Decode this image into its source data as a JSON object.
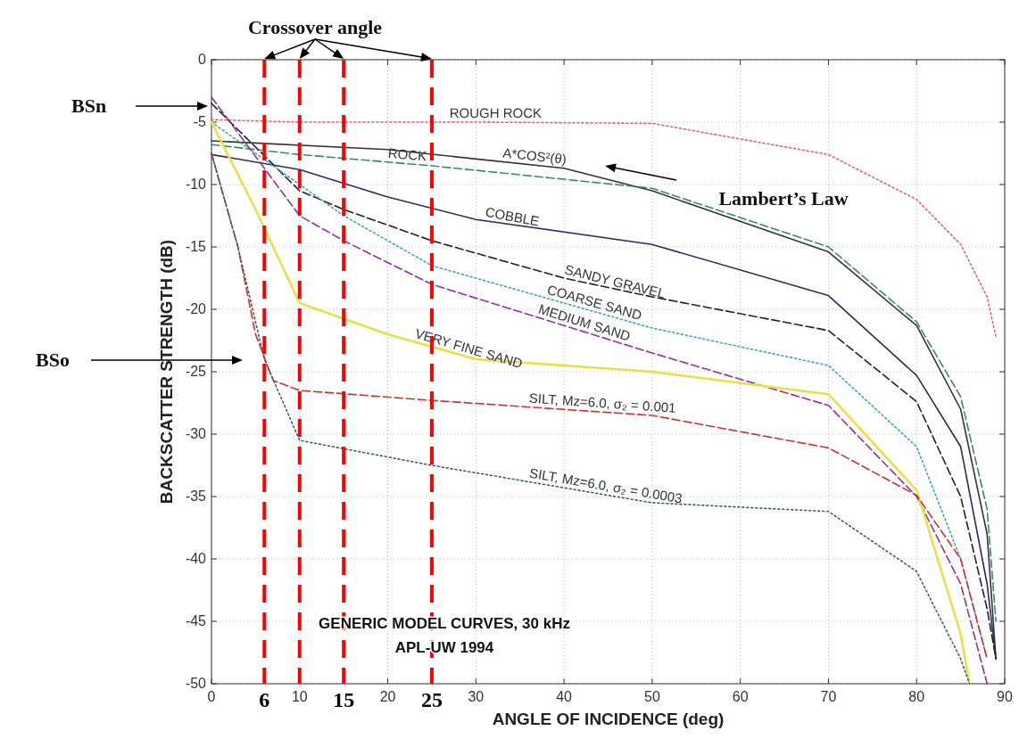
{
  "chart_data": {
    "type": "line",
    "xlabel": "ANGLE OF INCIDENCE (deg)",
    "ylabel": "BACKSCATTER STRENGTH (dB)",
    "xlim": [
      0,
      90
    ],
    "xticks": [
      0,
      10,
      20,
      30,
      40,
      50,
      60,
      70,
      80,
      90
    ],
    "ylim": [
      -50,
      0
    ],
    "yticks": [
      0,
      -5,
      -10,
      -15,
      -20,
      -25,
      -30,
      -35,
      -40,
      -45,
      -50
    ],
    "grid": true,
    "marker": "none",
    "series": [
      {
        "name": "ROUGH ROCK",
        "color": "#e0607a",
        "line_style": "dotted",
        "x": [
          0,
          10,
          30,
          50,
          70,
          80,
          85,
          88,
          89
        ],
        "values": [
          -4.8,
          -5,
          -5,
          -5.1,
          -7.6,
          -11.2,
          -14.8,
          -19,
          -22.2
        ]
      },
      {
        "name": "A*COS²(θ)",
        "color": "#333333",
        "line_style": "solid",
        "x": [
          0,
          20,
          40,
          50,
          70,
          80,
          85,
          88,
          89
        ],
        "values": [
          -6.5,
          -7.2,
          -8.7,
          -10.5,
          -15.4,
          -21.3,
          -28,
          -38,
          -48
        ]
      },
      {
        "name": "ROCK",
        "color": "#3a8a6a",
        "line_style": "dashed",
        "x": [
          0,
          10,
          25,
          50,
          70,
          80,
          85,
          88,
          89
        ],
        "values": [
          -6.8,
          -7.6,
          -8.5,
          -10.3,
          -15,
          -21,
          -27,
          -36,
          -45
        ]
      },
      {
        "name": "COBBLE",
        "color": "#2a2a60",
        "line_style": "solid",
        "x": [
          0,
          10,
          20,
          30,
          50,
          70,
          80,
          85,
          88,
          89
        ],
        "values": [
          -7.6,
          -8.8,
          -11,
          -12.8,
          -14.8,
          -18.9,
          -25.3,
          -31,
          -42,
          -48
        ]
      },
      {
        "name": "SANDY GRAVEL",
        "color": "#222222",
        "line_style": "dashed",
        "x": [
          0,
          10,
          15,
          25,
          40,
          50,
          70,
          80,
          85,
          88,
          89
        ],
        "values": [
          -3.5,
          -10.5,
          -12,
          -14.5,
          -17.5,
          -19,
          -21.7,
          -27.4,
          -35,
          -44,
          -48
        ]
      },
      {
        "name": "COARSE SAND",
        "color": "#40a0c0",
        "line_style": "dotted",
        "x": [
          0,
          10,
          15,
          25,
          50,
          70,
          80,
          85,
          88
        ],
        "values": [
          -5,
          -10,
          -12.5,
          -16.5,
          -21.5,
          -24.5,
          -31,
          -40,
          -48
        ]
      },
      {
        "name": "MEDIUM SAND",
        "color": "#9030a0",
        "line_style": "dashed",
        "x": [
          0,
          10,
          15,
          25,
          50,
          70,
          80,
          85,
          88
        ],
        "values": [
          -3,
          -12.5,
          -14.5,
          -18,
          -23.5,
          -27.7,
          -35,
          -42,
          -50
        ]
      },
      {
        "name": "VERY FINE SAND",
        "color": "#e8e040",
        "line_style": "solid",
        "x": [
          0,
          5,
          10,
          20,
          30,
          50,
          70,
          80,
          85,
          86
        ],
        "values": [
          -5,
          -12,
          -19.5,
          -22,
          -24,
          -25,
          -26.8,
          -34.5,
          -46,
          -50
        ]
      },
      {
        "name": "SILT, Mz=6.0, σ₂ = 0.001",
        "color": "#d03030",
        "line_style": "dashed",
        "x": [
          0,
          3,
          5,
          7,
          10,
          25,
          50,
          70,
          80,
          85,
          88
        ],
        "values": [
          -7.5,
          -15,
          -22,
          -25.7,
          -26.5,
          -27.3,
          -28.5,
          -31.1,
          -34.9,
          -40,
          -48
        ]
      },
      {
        "name": "SILT, Mz=6.0, σ₂ = 0.0003",
        "color": "#406060",
        "line_style": "dotted",
        "x": [
          0,
          3,
          6,
          10,
          25,
          50,
          70,
          80,
          85,
          86
        ],
        "values": [
          -7.5,
          -15,
          -24,
          -30.5,
          -32.5,
          -35.5,
          -36.2,
          -41,
          -48,
          -50
        ]
      }
    ],
    "ref_lines": [
      {
        "axis": "x",
        "value": 6,
        "label": "6",
        "color": "#ff0000",
        "line_style": "dashed"
      },
      {
        "axis": "x",
        "value": 10,
        "label": null,
        "color": "#ff0000",
        "line_style": "dashed"
      },
      {
        "axis": "x",
        "value": 15,
        "label": "15",
        "color": "#ff0000",
        "line_style": "dashed"
      },
      {
        "axis": "x",
        "value": 25,
        "label": "25",
        "color": "#ff0000",
        "line_style": "dashed"
      }
    ],
    "annotations": [
      "Crossover angle",
      "Lambert’s Law",
      "GENERIC MODEL CURVES, 30 kHz",
      "APL-UW  1994",
      "BSn",
      "BSo"
    ]
  }
}
